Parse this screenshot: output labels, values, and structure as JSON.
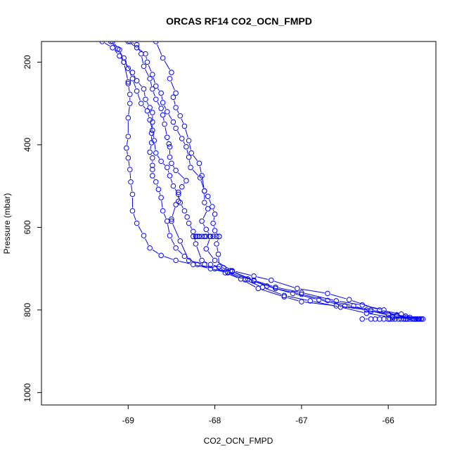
{
  "chart_data": {
    "type": "line",
    "title": "ORCAS RF14 CO2_OCN_FMPD",
    "xlabel": "CO2_OCN_FMPD",
    "ylabel": "Pressure (mbar)",
    "xlim": [
      -70.0,
      -65.45
    ],
    "ylim": [
      1030,
      150
    ],
    "y_reversed": true,
    "x_ticks": [
      -69,
      -68,
      -67,
      -66
    ],
    "y_ticks": [
      200,
      400,
      600,
      800,
      1000
    ],
    "grid": false,
    "legend": "none",
    "line_color": "#0000ff",
    "marker": "open-circle",
    "series": [
      {
        "points": [
          [
            -65.62,
            822
          ],
          [
            -65.75,
            818
          ],
          [
            -65.9,
            815
          ],
          [
            -66.05,
            800
          ],
          [
            -66.3,
            788
          ],
          [
            -66.6,
            778
          ],
          [
            -67.0,
            758
          ],
          [
            -67.3,
            745
          ],
          [
            -67.55,
            728
          ],
          [
            -67.82,
            705
          ],
          [
            -67.95,
            695
          ],
          [
            -67.96,
            665
          ],
          [
            -67.98,
            640
          ],
          [
            -67.95,
            622
          ],
          [
            -68.0,
            608
          ],
          [
            -68.02,
            590
          ],
          [
            -68.0,
            568
          ],
          [
            -68.03,
            550
          ],
          [
            -68.08,
            525
          ],
          [
            -68.12,
            512
          ],
          [
            -68.15,
            475
          ],
          [
            -68.18,
            445
          ],
          [
            -68.27,
            420
          ],
          [
            -68.3,
            390
          ],
          [
            -68.35,
            355
          ],
          [
            -68.4,
            330
          ],
          [
            -68.45,
            310
          ],
          [
            -68.48,
            285
          ],
          [
            -68.45,
            275
          ],
          [
            -68.52,
            240
          ],
          [
            -68.5,
            225
          ],
          [
            -68.6,
            190
          ],
          [
            -68.68,
            150
          ]
        ]
      },
      {
        "points": [
          [
            -65.65,
            822
          ],
          [
            -65.85,
            810
          ],
          [
            -66.1,
            800
          ],
          [
            -66.45,
            775
          ],
          [
            -66.7,
            760
          ],
          [
            -67.05,
            748
          ],
          [
            -67.35,
            728
          ],
          [
            -67.55,
            718
          ],
          [
            -67.8,
            705
          ],
          [
            -68.0,
            680
          ],
          [
            -68.1,
            652
          ],
          [
            -68.05,
            622
          ],
          [
            -68.1,
            605
          ],
          [
            -68.15,
            585
          ],
          [
            -68.08,
            555
          ],
          [
            -68.12,
            540
          ],
          [
            -68.12,
            512
          ],
          [
            -68.17,
            480
          ],
          [
            -68.28,
            455
          ],
          [
            -68.3,
            430
          ],
          [
            -68.33,
            405
          ],
          [
            -68.38,
            385
          ],
          [
            -68.45,
            360
          ],
          [
            -68.48,
            345
          ],
          [
            -68.55,
            320
          ],
          [
            -68.6,
            298
          ],
          [
            -68.62,
            275
          ],
          [
            -68.68,
            258
          ],
          [
            -68.72,
            230
          ],
          [
            -68.78,
            200
          ],
          [
            -68.8,
            180
          ],
          [
            -68.9,
            165
          ],
          [
            -69.0,
            150
          ]
        ]
      },
      {
        "points": [
          [
            -65.7,
            822
          ],
          [
            -65.95,
            815
          ],
          [
            -66.25,
            800
          ],
          [
            -66.6,
            790
          ],
          [
            -67.0,
            780
          ],
          [
            -67.2,
            768
          ],
          [
            -67.5,
            748
          ],
          [
            -67.7,
            725
          ],
          [
            -67.88,
            710
          ],
          [
            -68.0,
            700
          ],
          [
            -68.12,
            690
          ],
          [
            -68.3,
            680
          ],
          [
            -68.4,
            633
          ],
          [
            -68.5,
            585
          ],
          [
            -68.5,
            580
          ],
          [
            -68.45,
            545
          ],
          [
            -68.42,
            537
          ],
          [
            -68.42,
            515
          ],
          [
            -68.38,
            502
          ],
          [
            -68.33,
            487
          ],
          [
            -68.45,
            462
          ],
          [
            -68.5,
            445
          ],
          [
            -68.52,
            430
          ],
          [
            -68.52,
            405
          ],
          [
            -68.53,
            398
          ],
          [
            -68.55,
            382
          ],
          [
            -68.58,
            350
          ],
          [
            -68.6,
            328
          ],
          [
            -68.62,
            312
          ],
          [
            -68.68,
            290
          ],
          [
            -68.72,
            265
          ],
          [
            -68.75,
            240
          ],
          [
            -68.82,
            210
          ],
          [
            -68.85,
            180
          ],
          [
            -68.9,
            158
          ],
          [
            -68.98,
            150
          ]
        ]
      },
      {
        "points": [
          [
            -65.62,
            822
          ],
          [
            -65.8,
            815
          ],
          [
            -66.0,
            810
          ],
          [
            -66.2,
            803
          ],
          [
            -66.4,
            790
          ],
          [
            -66.7,
            777
          ],
          [
            -67.0,
            762
          ],
          [
            -67.3,
            748
          ],
          [
            -67.55,
            730
          ],
          [
            -67.8,
            707
          ],
          [
            -67.9,
            698
          ],
          [
            -68.05,
            690
          ],
          [
            -68.15,
            680
          ],
          [
            -68.22,
            640
          ],
          [
            -68.25,
            610
          ],
          [
            -68.3,
            590
          ],
          [
            -68.32,
            575
          ],
          [
            -68.35,
            560
          ],
          [
            -68.4,
            540
          ],
          [
            -68.42,
            520
          ],
          [
            -68.48,
            500
          ],
          [
            -68.52,
            475
          ],
          [
            -68.55,
            455
          ],
          [
            -68.62,
            440
          ],
          [
            -68.68,
            420
          ],
          [
            -68.7,
            390
          ],
          [
            -68.72,
            365
          ],
          [
            -68.75,
            340
          ],
          [
            -68.78,
            318
          ],
          [
            -68.85,
            300
          ],
          [
            -68.9,
            270
          ],
          [
            -68.95,
            240
          ],
          [
            -69.0,
            215
          ],
          [
            -69.05,
            190
          ],
          [
            -69.12,
            168
          ],
          [
            -69.2,
            150
          ]
        ]
      },
      {
        "points": [
          [
            -65.65,
            822
          ],
          [
            -65.9,
            812
          ],
          [
            -66.2,
            800
          ],
          [
            -66.5,
            790
          ],
          [
            -66.8,
            775
          ],
          [
            -67.1,
            760
          ],
          [
            -67.4,
            742
          ],
          [
            -67.62,
            725
          ],
          [
            -67.85,
            708
          ],
          [
            -68.0,
            700
          ],
          [
            -68.2,
            690
          ],
          [
            -68.35,
            670
          ],
          [
            -68.45,
            650
          ],
          [
            -68.52,
            620
          ],
          [
            -68.55,
            585
          ],
          [
            -68.6,
            560
          ],
          [
            -68.62,
            528
          ],
          [
            -68.65,
            508
          ],
          [
            -68.68,
            490
          ],
          [
            -68.72,
            475
          ],
          [
            -68.72,
            460
          ],
          [
            -68.72,
            450
          ],
          [
            -68.72,
            432
          ],
          [
            -68.75,
            418
          ],
          [
            -68.73,
            395
          ],
          [
            -68.73,
            372
          ],
          [
            -68.72,
            345
          ],
          [
            -68.72,
            322
          ],
          [
            -68.75,
            310
          ],
          [
            -68.8,
            290
          ],
          [
            -68.82,
            265
          ],
          [
            -68.9,
            245
          ],
          [
            -68.95,
            225
          ],
          [
            -69.05,
            200
          ],
          [
            -69.1,
            185
          ],
          [
            -69.18,
            165
          ],
          [
            -69.3,
            150
          ]
        ]
      },
      {
        "points": [
          [
            -65.68,
            822
          ],
          [
            -65.95,
            818
          ],
          [
            -66.25,
            808
          ],
          [
            -66.55,
            793
          ],
          [
            -66.9,
            778
          ],
          [
            -67.2,
            765
          ],
          [
            -67.45,
            745
          ],
          [
            -67.65,
            727
          ],
          [
            -67.85,
            710
          ],
          [
            -68.05,
            700
          ],
          [
            -68.25,
            690
          ],
          [
            -68.45,
            680
          ],
          [
            -68.62,
            668
          ],
          [
            -68.75,
            650
          ],
          [
            -68.82,
            620
          ],
          [
            -68.9,
            590
          ],
          [
            -68.95,
            560
          ],
          [
            -68.95,
            520
          ],
          [
            -68.97,
            490
          ],
          [
            -68.98,
            460
          ],
          [
            -69.0,
            432
          ],
          [
            -69.02,
            408
          ],
          [
            -69.0,
            380
          ],
          [
            -69.0,
            335
          ],
          [
            -68.98,
            300
          ],
          [
            -68.98,
            278
          ],
          [
            -69.0,
            252
          ],
          [
            -69.0,
            248
          ],
          [
            -69.05,
            200
          ],
          [
            -69.1,
            170
          ],
          [
            -69.18,
            150
          ]
        ]
      },
      {
        "points": [
          [
            -68.25,
            622
          ],
          [
            -68.22,
            622
          ],
          [
            -68.2,
            622
          ],
          [
            -68.18,
            622
          ],
          [
            -68.15,
            622
          ],
          [
            -68.12,
            622
          ],
          [
            -68.1,
            622
          ],
          [
            -68.06,
            622
          ],
          [
            -68.02,
            622
          ],
          [
            -67.98,
            622
          ],
          [
            -67.95,
            622
          ]
        ]
      },
      {
        "points": [
          [
            -66.3,
            822
          ],
          [
            -66.2,
            822
          ],
          [
            -66.15,
            822
          ],
          [
            -66.1,
            822
          ],
          [
            -66.05,
            822
          ],
          [
            -66.0,
            822
          ],
          [
            -65.98,
            822
          ],
          [
            -65.95,
            822
          ],
          [
            -65.92,
            822
          ],
          [
            -65.88,
            822
          ],
          [
            -65.85,
            822
          ],
          [
            -65.82,
            822
          ],
          [
            -65.8,
            822
          ],
          [
            -65.78,
            822
          ],
          [
            -65.75,
            822
          ],
          [
            -65.72,
            822
          ],
          [
            -65.7,
            822
          ],
          [
            -65.68,
            822
          ],
          [
            -65.66,
            822
          ],
          [
            -65.64,
            822
          ],
          [
            -65.62,
            822
          ],
          [
            -65.6,
            822
          ]
        ]
      }
    ]
  }
}
